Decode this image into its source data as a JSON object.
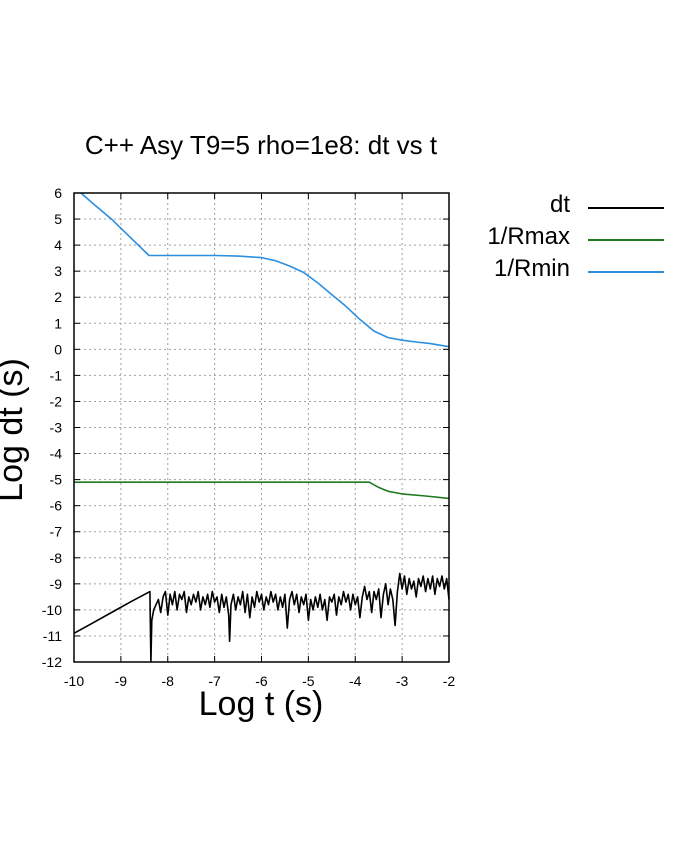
{
  "chart_data": {
    "type": "line",
    "title": "C++ Asy T9=5 rho=1e8: dt vs t",
    "xlabel": "Log t (s)",
    "ylabel": "Log dt (s)",
    "xlim": [
      -10,
      -2
    ],
    "ylim": [
      -12,
      6
    ],
    "xticks": [
      -10,
      -9,
      -8,
      -7,
      -6,
      -5,
      -4,
      -3,
      -2
    ],
    "yticks": [
      6,
      5,
      4,
      3,
      2,
      1,
      0,
      -1,
      -2,
      -3,
      -4,
      -5,
      -6,
      -7,
      -8,
      -9,
      -10,
      -11,
      -12
    ],
    "grid": true,
    "legend_position": "outside-right",
    "series": [
      {
        "name": "dt",
        "color": "#000000",
        "points": [
          [
            -10.0,
            -10.9
          ],
          [
            -9.6,
            -10.5
          ],
          [
            -9.2,
            -10.1
          ],
          [
            -8.8,
            -9.7
          ],
          [
            -8.38,
            -9.3
          ],
          [
            -8.36,
            -12.0
          ],
          [
            -8.34,
            -10.4
          ],
          [
            -8.3,
            -10.0
          ],
          [
            -8.25,
            -9.8
          ],
          [
            -8.2,
            -9.6
          ],
          [
            -8.15,
            -10.1
          ],
          [
            -8.1,
            -9.5
          ],
          [
            -8.05,
            -9.3
          ],
          [
            -8.0,
            -10.2
          ],
          [
            -7.95,
            -9.4
          ],
          [
            -7.9,
            -9.8
          ],
          [
            -7.85,
            -9.3
          ],
          [
            -7.8,
            -10.0
          ],
          [
            -7.75,
            -9.4
          ],
          [
            -7.7,
            -9.6
          ],
          [
            -7.65,
            -9.3
          ],
          [
            -7.6,
            -10.1
          ],
          [
            -7.55,
            -9.5
          ],
          [
            -7.5,
            -9.8
          ],
          [
            -7.45,
            -9.4
          ],
          [
            -7.4,
            -9.7
          ],
          [
            -7.35,
            -9.3
          ],
          [
            -7.3,
            -10.0
          ],
          [
            -7.25,
            -9.5
          ],
          [
            -7.2,
            -9.8
          ],
          [
            -7.15,
            -9.4
          ],
          [
            -7.1,
            -9.9
          ],
          [
            -7.05,
            -9.3
          ],
          [
            -7.0,
            -9.7
          ],
          [
            -6.95,
            -9.5
          ],
          [
            -6.9,
            -10.1
          ],
          [
            -6.85,
            -9.4
          ],
          [
            -6.8,
            -9.9
          ],
          [
            -6.75,
            -9.5
          ],
          [
            -6.7,
            -10.2
          ],
          [
            -6.68,
            -11.2
          ],
          [
            -6.65,
            -9.8
          ],
          [
            -6.6,
            -9.4
          ],
          [
            -6.55,
            -10.0
          ],
          [
            -6.5,
            -9.5
          ],
          [
            -6.45,
            -9.8
          ],
          [
            -6.4,
            -9.3
          ],
          [
            -6.35,
            -10.1
          ],
          [
            -6.3,
            -9.4
          ],
          [
            -6.25,
            -10.3
          ],
          [
            -6.2,
            -9.5
          ],
          [
            -6.15,
            -9.9
          ],
          [
            -6.1,
            -9.3
          ],
          [
            -6.05,
            -9.7
          ],
          [
            -6.0,
            -9.4
          ],
          [
            -5.95,
            -10.0
          ],
          [
            -5.9,
            -9.5
          ],
          [
            -5.85,
            -9.8
          ],
          [
            -5.8,
            -9.3
          ],
          [
            -5.75,
            -9.7
          ],
          [
            -5.7,
            -9.4
          ],
          [
            -5.65,
            -10.0
          ],
          [
            -5.6,
            -9.5
          ],
          [
            -5.55,
            -9.9
          ],
          [
            -5.5,
            -9.4
          ],
          [
            -5.45,
            -10.7
          ],
          [
            -5.4,
            -9.6
          ],
          [
            -5.35,
            -9.3
          ],
          [
            -5.3,
            -9.8
          ],
          [
            -5.25,
            -9.4
          ],
          [
            -5.2,
            -10.1
          ],
          [
            -5.15,
            -9.5
          ],
          [
            -5.1,
            -9.8
          ],
          [
            -5.05,
            -9.4
          ],
          [
            -5.0,
            -10.4
          ],
          [
            -4.95,
            -9.6
          ],
          [
            -4.9,
            -10.0
          ],
          [
            -4.85,
            -9.5
          ],
          [
            -4.8,
            -9.9
          ],
          [
            -4.75,
            -9.4
          ],
          [
            -4.7,
            -10.0
          ],
          [
            -4.65,
            -9.6
          ],
          [
            -4.6,
            -10.4
          ],
          [
            -4.55,
            -9.5
          ],
          [
            -4.5,
            -9.7
          ],
          [
            -4.45,
            -9.4
          ],
          [
            -4.4,
            -10.2
          ],
          [
            -4.35,
            -9.5
          ],
          [
            -4.3,
            -9.8
          ],
          [
            -4.25,
            -9.3
          ],
          [
            -4.2,
            -9.7
          ],
          [
            -4.15,
            -9.4
          ],
          [
            -4.1,
            -10.0
          ],
          [
            -4.05,
            -9.4
          ],
          [
            -4.0,
            -9.8
          ],
          [
            -3.95,
            -9.5
          ],
          [
            -3.9,
            -10.3
          ],
          [
            -3.85,
            -9.5
          ],
          [
            -3.8,
            -9.1
          ],
          [
            -3.75,
            -9.6
          ],
          [
            -3.7,
            -9.3
          ],
          [
            -3.65,
            -10.1
          ],
          [
            -3.6,
            -9.3
          ],
          [
            -3.55,
            -9.6
          ],
          [
            -3.5,
            -9.2
          ],
          [
            -3.45,
            -10.3
          ],
          [
            -3.4,
            -9.4
          ],
          [
            -3.35,
            -9.0
          ],
          [
            -3.3,
            -9.8
          ],
          [
            -3.25,
            -9.2
          ],
          [
            -3.2,
            -9.6
          ],
          [
            -3.15,
            -10.6
          ],
          [
            -3.1,
            -9.3
          ],
          [
            -3.05,
            -8.6
          ],
          [
            -3.0,
            -9.2
          ],
          [
            -2.95,
            -8.7
          ],
          [
            -2.9,
            -9.4
          ],
          [
            -2.85,
            -8.8
          ],
          [
            -2.8,
            -9.2
          ],
          [
            -2.75,
            -8.9
          ],
          [
            -2.7,
            -9.5
          ],
          [
            -2.65,
            -8.8
          ],
          [
            -2.6,
            -9.1
          ],
          [
            -2.55,
            -8.7
          ],
          [
            -2.5,
            -9.3
          ],
          [
            -2.45,
            -8.8
          ],
          [
            -2.4,
            -9.2
          ],
          [
            -2.35,
            -8.7
          ],
          [
            -2.3,
            -9.4
          ],
          [
            -2.25,
            -8.8
          ],
          [
            -2.2,
            -9.1
          ],
          [
            -2.15,
            -8.7
          ],
          [
            -2.1,
            -9.2
          ],
          [
            -2.05,
            -8.8
          ],
          [
            -2.0,
            -9.6
          ]
        ]
      },
      {
        "name": "1/Rmax",
        "color": "#1f7a1f",
        "points": [
          [
            -10.0,
            -5.1
          ],
          [
            -9.0,
            -5.1
          ],
          [
            -8.0,
            -5.1
          ],
          [
            -7.0,
            -5.1
          ],
          [
            -6.0,
            -5.1
          ],
          [
            -5.0,
            -5.1
          ],
          [
            -4.0,
            -5.1
          ],
          [
            -3.7,
            -5.1
          ],
          [
            -3.5,
            -5.3
          ],
          [
            -3.3,
            -5.45
          ],
          [
            -3.0,
            -5.55
          ],
          [
            -2.5,
            -5.63
          ],
          [
            -2.0,
            -5.72
          ]
        ]
      },
      {
        "name": "1/Rmin",
        "color": "#2b8fe0",
        "points": [
          [
            -9.85,
            6.0
          ],
          [
            -9.6,
            5.6
          ],
          [
            -9.2,
            5.0
          ],
          [
            -8.8,
            4.3
          ],
          [
            -8.4,
            3.6
          ],
          [
            -8.0,
            3.6
          ],
          [
            -7.5,
            3.6
          ],
          [
            -7.0,
            3.6
          ],
          [
            -6.5,
            3.58
          ],
          [
            -6.0,
            3.52
          ],
          [
            -5.7,
            3.4
          ],
          [
            -5.4,
            3.2
          ],
          [
            -5.1,
            2.95
          ],
          [
            -4.8,
            2.55
          ],
          [
            -4.5,
            2.1
          ],
          [
            -4.2,
            1.65
          ],
          [
            -3.9,
            1.15
          ],
          [
            -3.6,
            0.7
          ],
          [
            -3.3,
            0.45
          ],
          [
            -3.0,
            0.35
          ],
          [
            -2.7,
            0.28
          ],
          [
            -2.4,
            0.22
          ],
          [
            -2.0,
            0.1
          ]
        ]
      }
    ]
  }
}
